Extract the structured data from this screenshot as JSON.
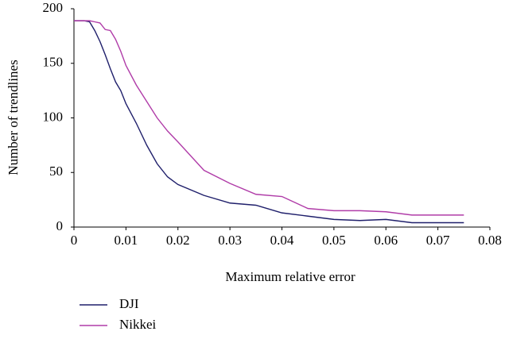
{
  "chart_data": {
    "type": "line",
    "x_label": "Maximum relative error",
    "y_label": "Number of trendlines",
    "x": [
      0,
      0.002,
      0.003,
      0.004,
      0.005,
      0.006,
      0.007,
      0.008,
      0.009,
      0.01,
      0.012,
      0.014,
      0.016,
      0.018,
      0.02,
      0.025,
      0.03,
      0.035,
      0.04,
      0.045,
      0.05,
      0.055,
      0.06,
      0.065,
      0.07,
      0.075
    ],
    "series": [
      {
        "name": "DJI",
        "color": "#1f1f6b",
        "values": [
          189,
          189,
          188,
          180,
          170,
          158,
          145,
          133,
          125,
          113,
          95,
          75,
          58,
          46,
          39,
          29,
          22,
          20,
          13,
          10,
          7,
          6,
          7,
          4,
          4,
          4
        ]
      },
      {
        "name": "Nikkei",
        "color": "#b03ca8",
        "values": [
          189,
          189,
          189,
          188,
          187,
          181,
          180,
          172,
          161,
          148,
          130,
          115,
          100,
          88,
          78,
          52,
          40,
          30,
          28,
          17,
          15,
          15,
          14,
          11,
          11,
          11
        ]
      }
    ],
    "xlim": [
      0,
      0.08
    ],
    "xticks": [
      0,
      0.01,
      0.02,
      0.03,
      0.04,
      0.05,
      0.06,
      0.07,
      0.08
    ],
    "ylim": [
      0,
      200
    ],
    "yticks": [
      0,
      50,
      100,
      150,
      200
    ],
    "grid": false,
    "legend": "bottom-left"
  }
}
